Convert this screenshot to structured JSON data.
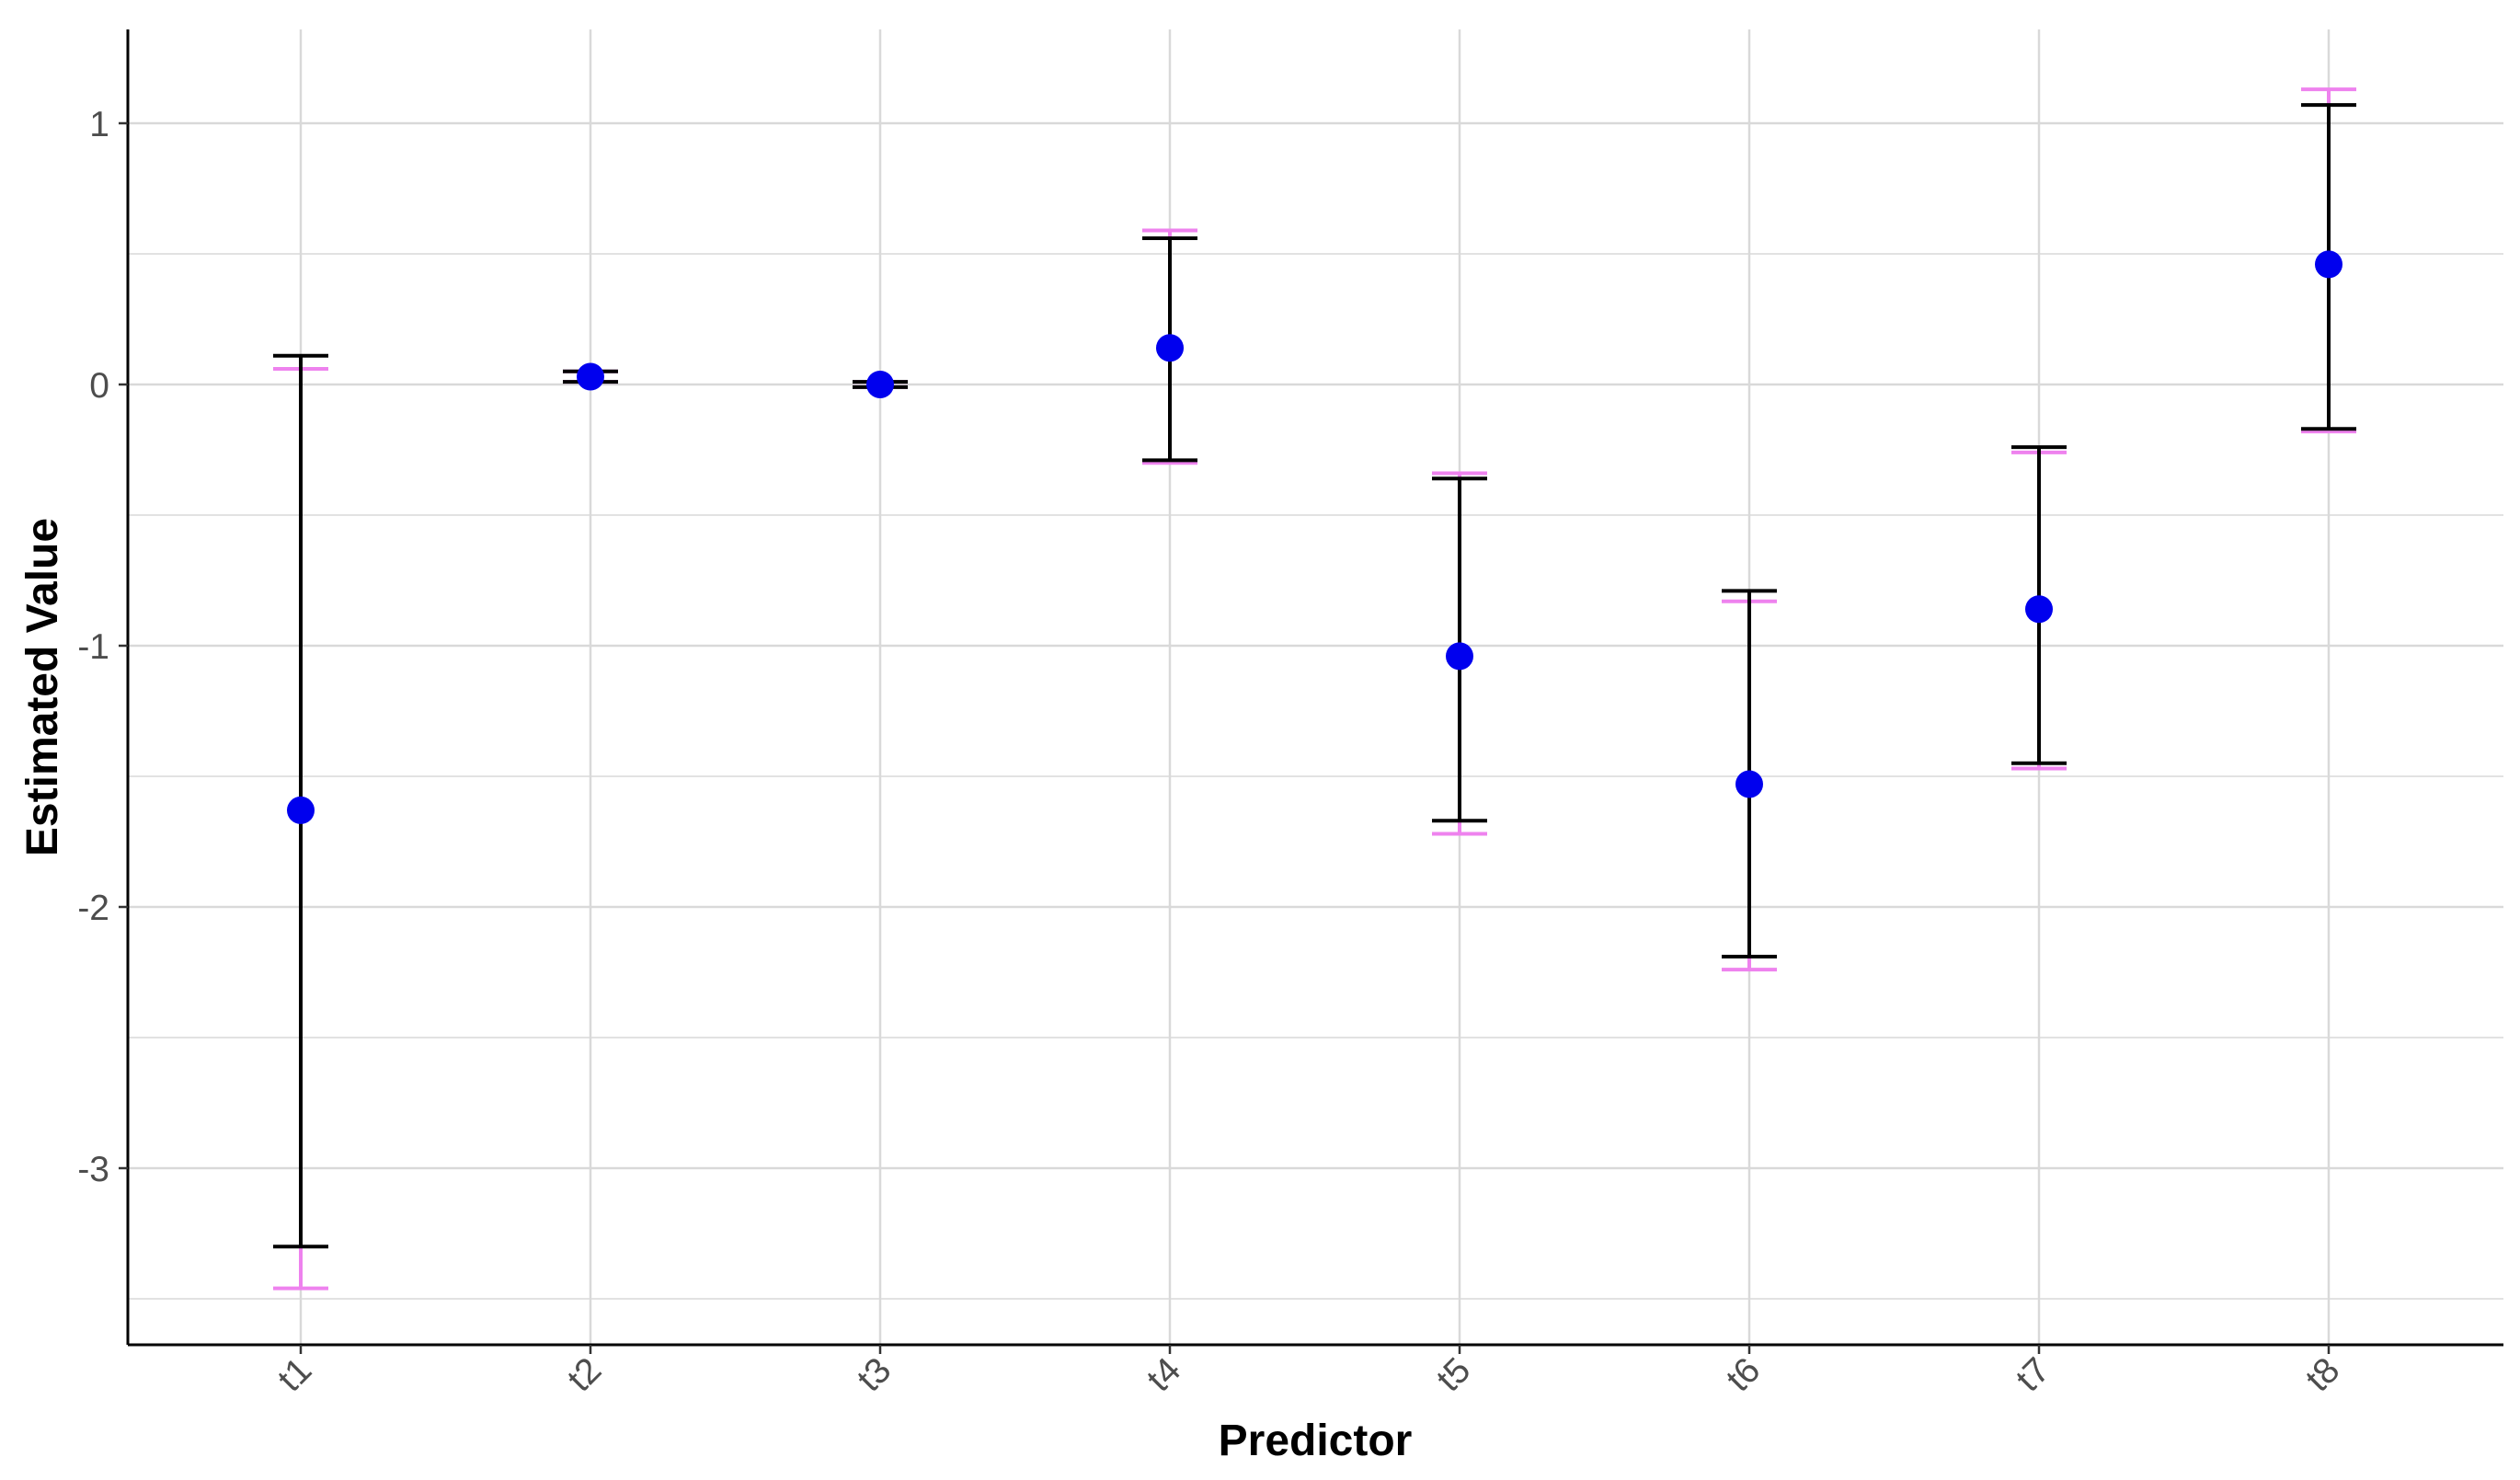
{
  "chart_data": {
    "type": "scatter",
    "subtype": "point-with-error-bars",
    "title": "",
    "xlabel": "Predictor",
    "ylabel": "Estimated Value",
    "categories": [
      "t1",
      "t2",
      "t3",
      "t4",
      "t5",
      "t6",
      "t7",
      "t8"
    ],
    "estimates": [
      -1.63,
      0.03,
      0.0,
      0.14,
      -1.04,
      -1.53,
      -0.86,
      0.46
    ],
    "interval_black": {
      "lower": [
        -3.3,
        0.01,
        -0.01,
        -0.29,
        -1.67,
        -2.19,
        -1.45,
        -0.17
      ],
      "upper": [
        0.11,
        0.05,
        0.01,
        0.56,
        -0.36,
        -0.79,
        -0.24,
        1.07
      ]
    },
    "interval_pink": {
      "lower": [
        -3.46,
        0.01,
        -0.01,
        -0.3,
        -1.72,
        -2.24,
        -1.47,
        -0.18
      ],
      "upper": [
        0.06,
        0.05,
        0.01,
        0.59,
        -0.34,
        -0.83,
        -0.26,
        1.13
      ]
    },
    "ylim": [
      -3.6,
      1.35
    ],
    "yticks": [
      1,
      0,
      -1,
      -2,
      -3
    ],
    "ytick_labels": [
      "1",
      "0",
      "-1",
      "-2",
      "-3"
    ],
    "grid": true,
    "x_tick_rotation": "45 degrees",
    "colors": {
      "point": "#0000ee",
      "interval_black": "#000000",
      "interval_pink": "#ee82ee",
      "grid": "#d9d9d9",
      "axis": "#000000"
    }
  }
}
